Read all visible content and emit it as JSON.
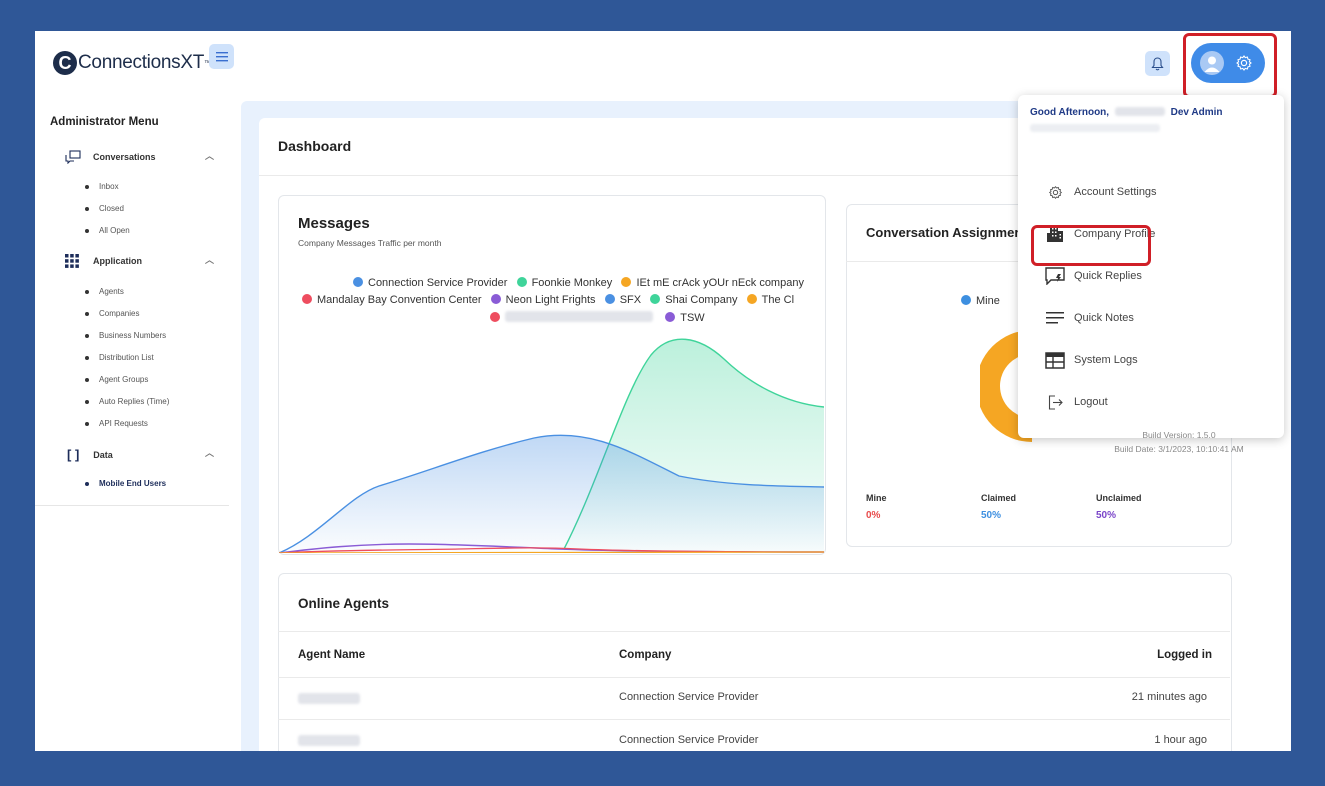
{
  "header": {
    "logo_text": "ConnectionsXT",
    "logo_tm": "™"
  },
  "sidebar": {
    "title": "Administrator Menu",
    "sections": [
      {
        "label": "Conversations",
        "items": [
          "Inbox",
          "Closed",
          "All Open"
        ]
      },
      {
        "label": "Application",
        "items": [
          "Agents",
          "Companies",
          "Business Numbers",
          "Distribution List",
          "Agent Groups",
          "Auto Replies (Time)",
          "API Requests"
        ]
      },
      {
        "label": "Data",
        "items": [
          "Mobile End Users"
        ]
      }
    ]
  },
  "dashboard": {
    "title": "Dashboard",
    "messages": {
      "title": "Messages",
      "subtitle": "Company Messages Traffic per month",
      "legend": [
        {
          "name": "Connection Service Provider",
          "color": "#4a90e2"
        },
        {
          "name": "Foonkie Monkey",
          "color": "#3fd49a"
        },
        {
          "name": "IEt mE crAck yOUr nEck company",
          "color": "#f5a623"
        },
        {
          "name": "Mandalay Bay Convention Center",
          "color": "#ee4d5f"
        },
        {
          "name": "Neon Light Frights",
          "color": "#8a5cd6"
        },
        {
          "name": "SFX",
          "color": "#4a90e2"
        },
        {
          "name": "Shai Company",
          "color": "#3fd49a"
        },
        {
          "name": "The Cl",
          "color": "#f5a623"
        },
        {
          "name": "",
          "color": "#ee4d5f"
        },
        {
          "name": "TSW",
          "color": "#8a5cd6"
        }
      ]
    },
    "assignment": {
      "title": "Conversation Assignmer",
      "legend_mine": "Mine",
      "stats": [
        {
          "label": "Mine",
          "value": "0%",
          "color": "#e84b4b"
        },
        {
          "label": "Claimed",
          "value": "50%",
          "color": "#3d8fe0"
        },
        {
          "label": "Unclaimed",
          "value": "50%",
          "color": "#7a45c9"
        }
      ]
    },
    "online_agents": {
      "title": "Online Agents",
      "columns": [
        "Agent Name",
        "Company",
        "Logged in"
      ],
      "rows": [
        {
          "company": "Connection Service Provider",
          "logged_in": "21 minutes ago"
        },
        {
          "company": "Connection Service Provider",
          "logged_in": "1 hour ago"
        }
      ]
    }
  },
  "dropdown": {
    "greeting_prefix": "Good Afternoon,",
    "greeting_suffix": "Dev Admin",
    "items": [
      "Account Settings",
      "Company Profile",
      "Quick Replies",
      "Quick Notes",
      "System Logs",
      "Logout"
    ],
    "build_version": "Build Version: 1.5.0",
    "build_date": "Build Date: 3/1/2023, 10:10:41 AM"
  },
  "colors": {
    "accent": "#3f8be8",
    "highlight": "#d01f27",
    "background": "#2f5797"
  }
}
